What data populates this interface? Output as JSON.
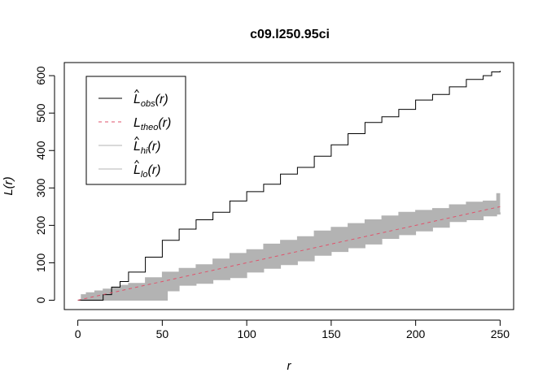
{
  "chart_data": {
    "type": "line",
    "title": "c09.l250.95ci",
    "xlabel": "r",
    "ylabel": "L(r)",
    "xlim": [
      -8,
      258
    ],
    "ylim": [
      -25,
      635
    ],
    "x_ticks": [
      0,
      50,
      100,
      150,
      200,
      250
    ],
    "y_ticks": [
      0,
      100,
      200,
      300,
      400,
      500,
      600
    ],
    "grid": false,
    "legend_position": "top-left",
    "legend": [
      {
        "key": "obs",
        "base": "L",
        "hat": true,
        "sub": "obs",
        "arg": "(r)",
        "color": "#000000",
        "style": "solid"
      },
      {
        "key": "theo",
        "base": "L",
        "hat": false,
        "sub": "theo",
        "arg": "(r)",
        "color": "#DF536B",
        "style": "dashed"
      },
      {
        "key": "hi",
        "base": "L",
        "hat": true,
        "sub": "hi",
        "arg": "(r)",
        "color": "#B3B3B3",
        "style": "solid"
      },
      {
        "key": "lo",
        "base": "L",
        "hat": true,
        "sub": "lo",
        "arg": "(r)",
        "color": "#B3B3B3",
        "style": "solid"
      }
    ],
    "series": [
      {
        "name": "obs",
        "color": "#000000",
        "x": [
          0,
          10,
          14,
          15,
          20,
          25,
          30,
          40,
          50,
          60,
          70,
          80,
          90,
          100,
          110,
          120,
          130,
          140,
          150,
          160,
          170,
          180,
          190,
          200,
          210,
          220,
          230,
          240,
          245,
          250
        ],
        "y": [
          0,
          0,
          0,
          15,
          35,
          50,
          75,
          115,
          160,
          190,
          215,
          235,
          265,
          290,
          310,
          337,
          355,
          385,
          415,
          445,
          475,
          490,
          510,
          535,
          550,
          570,
          590,
          600,
          610,
          613
        ]
      },
      {
        "name": "theo",
        "color": "#DF536B",
        "x": [
          0,
          250
        ],
        "y": [
          0,
          250
        ]
      },
      {
        "name": "hi",
        "color": "#B3B3B3",
        "x": [
          0,
          2,
          5,
          10,
          15,
          20,
          25,
          30,
          40,
          50,
          60,
          70,
          80,
          90,
          100,
          110,
          120,
          130,
          140,
          150,
          160,
          170,
          180,
          190,
          200,
          210,
          220,
          230,
          240,
          248,
          250
        ],
        "y": [
          0,
          15,
          20,
          25,
          30,
          35,
          40,
          45,
          60,
          75,
          85,
          95,
          110,
          125,
          135,
          150,
          160,
          170,
          185,
          195,
          205,
          215,
          225,
          235,
          240,
          245,
          255,
          262,
          265,
          285,
          285
        ]
      },
      {
        "name": "lo",
        "color": "#B3B3B3",
        "x": [
          0,
          10,
          20,
          30,
          40,
          50,
          52,
          53,
          60,
          70,
          80,
          90,
          100,
          110,
          120,
          130,
          140,
          150,
          160,
          170,
          180,
          190,
          200,
          210,
          220,
          230,
          240,
          248,
          250
        ],
        "y": [
          0,
          0,
          0,
          0,
          0,
          0,
          0,
          25,
          40,
          45,
          55,
          60,
          75,
          85,
          95,
          105,
          120,
          130,
          140,
          150,
          165,
          175,
          185,
          195,
          210,
          215,
          225,
          230,
          235
        ]
      }
    ]
  }
}
